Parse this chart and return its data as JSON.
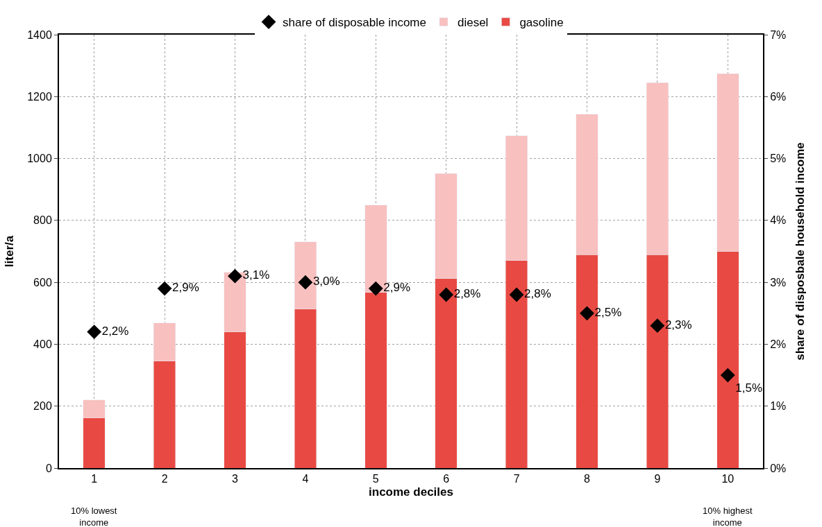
{
  "chart_data": {
    "type": "bar",
    "stacked": true,
    "xlabel": "income deciles",
    "ylabel": "liter/a",
    "y2label": "share of disposbale household income",
    "categories": [
      "1",
      "2",
      "3",
      "4",
      "5",
      "6",
      "7",
      "8",
      "9",
      "10"
    ],
    "series": [
      {
        "name": "gasoline",
        "color": "#e84a43",
        "values": [
          162,
          345,
          440,
          513,
          567,
          612,
          670,
          689,
          689,
          700
        ]
      },
      {
        "name": "diesel",
        "color": "#f8c0bf",
        "values": [
          58,
          124,
          192,
          218,
          283,
          340,
          403,
          454,
          556,
          574
        ]
      },
      {
        "name": "share of disposable income",
        "type": "scatter",
        "axis": "y2",
        "color": "#000000",
        "marker": "diamond",
        "values": [
          2.2,
          2.9,
          3.1,
          3.0,
          2.9,
          2.8,
          2.8,
          2.5,
          2.3,
          1.5
        ],
        "value_labels": [
          "2,2%",
          "2,9%",
          "3,1%",
          "3,0%",
          "2,9%",
          "2,8%",
          "2,8%",
          "2,5%",
          "2,3%",
          "1,5%"
        ]
      }
    ],
    "ylim": [
      0,
      1400
    ],
    "yticks": [
      0,
      200,
      400,
      600,
      800,
      1000,
      1200,
      1400
    ],
    "y2lim": [
      0,
      7
    ],
    "y2ticks": [
      {
        "value": 0,
        "label": "0%"
      },
      {
        "value": 1,
        "label": "1%"
      },
      {
        "value": 2,
        "label": "2%"
      },
      {
        "value": 3,
        "label": "3%"
      },
      {
        "value": 4,
        "label": "4%"
      },
      {
        "value": 5,
        "label": "5%"
      },
      {
        "value": 6,
        "label": "6%"
      },
      {
        "value": 7,
        "label": "7%"
      }
    ],
    "annotations": [
      "10% lowest income",
      "10% highest income"
    ],
    "grid": true,
    "legend": "top"
  }
}
